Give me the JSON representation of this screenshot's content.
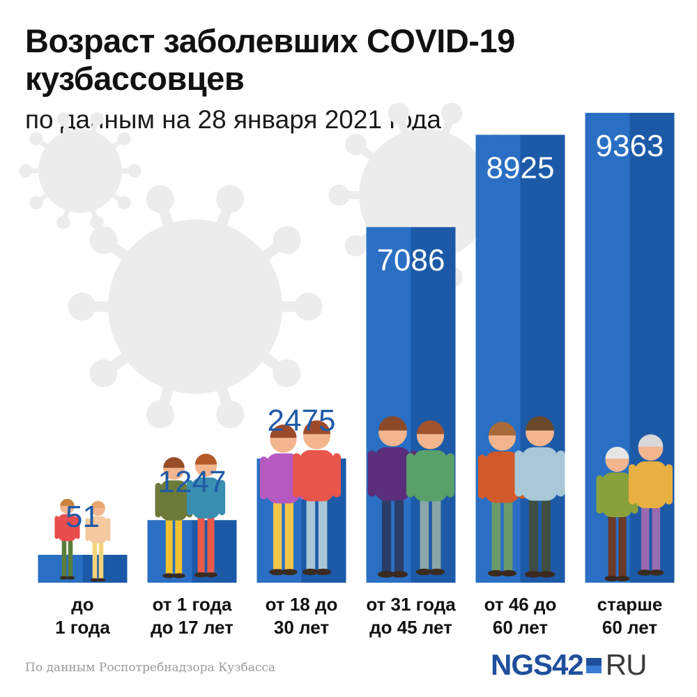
{
  "header": {
    "title": "Возраст заболевших COVID-19 кузбассовцев",
    "subtitle": "по данным на 28 января 2021 года"
  },
  "footer": {
    "source": "По данным Роспотребнадзора Кузбасса",
    "brand_main": "NGS42",
    "brand_suffix": "RU"
  },
  "colors": {
    "bar_dark": "#1c5aa8",
    "bar_light": "#2a6fc3",
    "value_text_outside": "#1f5ba8",
    "value_text_inside": "#ffffff",
    "category_text": "#111111",
    "virus_bg": "#ececec"
  },
  "chart_data": {
    "type": "bar",
    "title": "Возраст заболевших COVID-19 кузбассовцев",
    "subtitle": "по данным на 28 января 2021 года",
    "xlabel": "",
    "ylabel": "",
    "categories": [
      [
        "до",
        "1 года"
      ],
      [
        "от 1 года",
        "до 17 лет"
      ],
      [
        "от 18 до",
        "30 лет"
      ],
      [
        "от 31 года",
        "до 45 лет"
      ],
      [
        "от 46 до",
        "60 лет"
      ],
      [
        "старше",
        "60 лет"
      ]
    ],
    "values": [
      51,
      1247,
      2475,
      7086,
      8925,
      9363
    ],
    "value_labels": [
      "51",
      "1247",
      "2475",
      "7086",
      "8925",
      "9363"
    ],
    "grid": false,
    "legend": "none"
  }
}
